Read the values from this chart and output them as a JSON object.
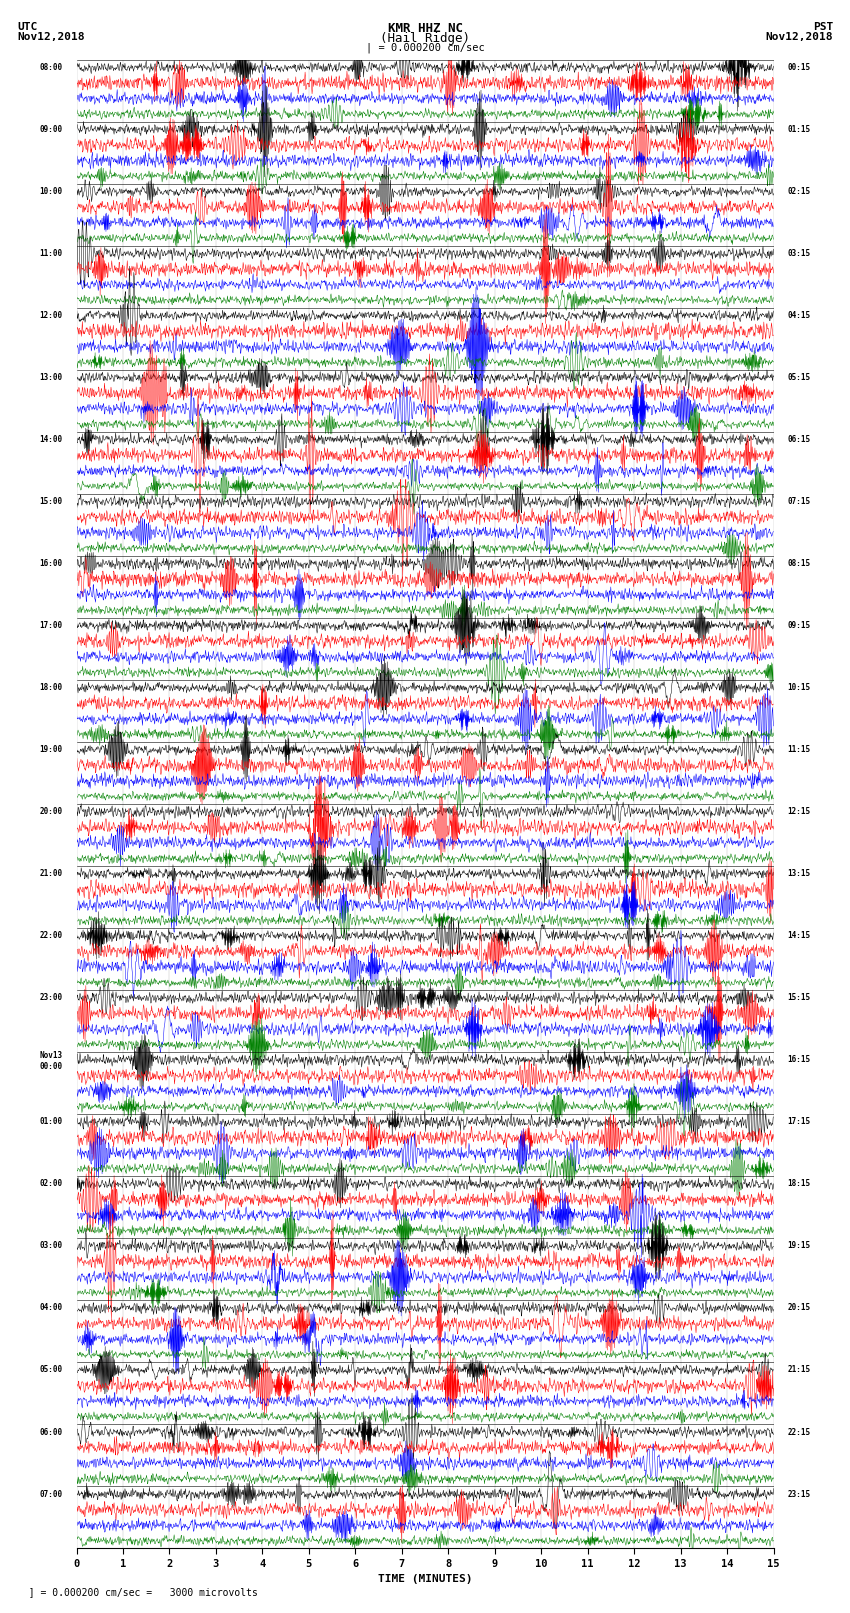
{
  "title_line1": "KMR HHZ NC",
  "title_line2": "(Hail Ridge)",
  "scale_label": "| = 0.000200 cm/sec",
  "left_label_line1": "UTC",
  "left_label_line2": "Nov12,2018",
  "right_label_line1": "PST",
  "right_label_line2": "Nov12,2018",
  "xlabel": "TIME (MINUTES)",
  "bottom_note": "  ] = 0.000200 cm/sec =   3000 microvolts",
  "xticks": [
    0,
    1,
    2,
    3,
    4,
    5,
    6,
    7,
    8,
    9,
    10,
    11,
    12,
    13,
    14,
    15
  ],
  "left_times": [
    "08:00",
    "09:00",
    "10:00",
    "11:00",
    "12:00",
    "13:00",
    "14:00",
    "15:00",
    "16:00",
    "17:00",
    "18:00",
    "19:00",
    "20:00",
    "21:00",
    "22:00",
    "23:00",
    "Nov13\n00:00",
    "01:00",
    "02:00",
    "03:00",
    "04:00",
    "05:00",
    "06:00",
    "07:00"
  ],
  "right_times": [
    "00:15",
    "01:15",
    "02:15",
    "03:15",
    "04:15",
    "05:15",
    "06:15",
    "07:15",
    "08:15",
    "09:15",
    "10:15",
    "11:15",
    "12:15",
    "13:15",
    "14:15",
    "15:15",
    "16:15",
    "17:15",
    "18:15",
    "19:15",
    "20:15",
    "21:15",
    "22:15",
    "23:15"
  ],
  "trace_colors": [
    "black",
    "red",
    "blue",
    "green"
  ],
  "n_rows": 24,
  "traces_per_row": 4,
  "bg_color": "white",
  "noise_seed": 42,
  "lw": 0.35
}
